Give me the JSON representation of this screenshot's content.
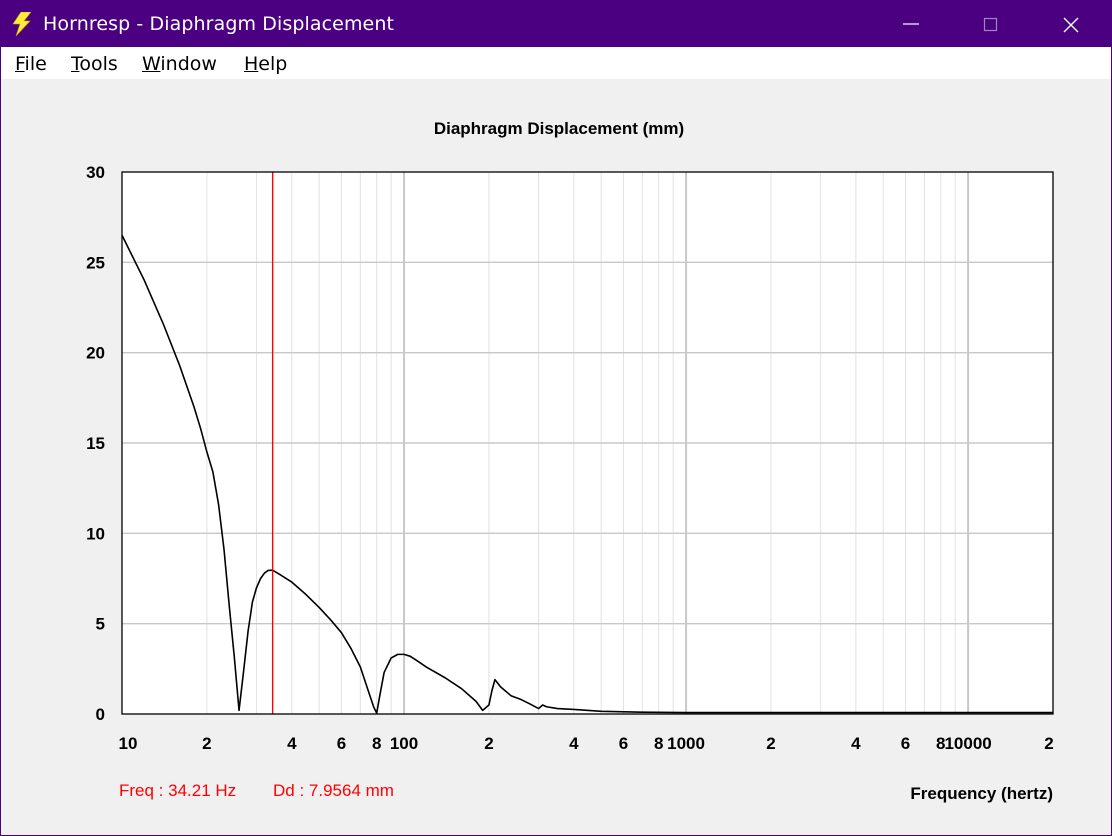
{
  "window": {
    "title": "Hornresp - Diaphragm Displacement",
    "title_color": "#4b0082",
    "icon": "lightning-bolt-icon",
    "controls": [
      "minimize-icon",
      "maximize-icon",
      "close-icon"
    ]
  },
  "menu": [
    {
      "label": "File",
      "mnemonic": "F",
      "rest": "ile"
    },
    {
      "label": "Tools",
      "mnemonic": "T",
      "rest": "ools"
    },
    {
      "label": "Window",
      "mnemonic": "W",
      "rest": "indow"
    },
    {
      "label": "Help",
      "mnemonic": "H",
      "rest": "elp"
    }
  ],
  "status": {
    "freq": "Freq : 34.21 Hz",
    "dd": "Dd : 7.9564 mm",
    "color": "#ff0000"
  },
  "chart_data": {
    "type": "line",
    "title": "Diaphragm Displacement (mm)",
    "xlabel": "Frequency (hertz)",
    "ylabel": "",
    "x_scale": "log",
    "xlim": [
      10,
      20000
    ],
    "ylim": [
      0,
      30
    ],
    "grid": true,
    "y_ticks": [
      0,
      5,
      10,
      15,
      20,
      25,
      30
    ],
    "x_tick_labels": [
      {
        "x": 10,
        "label": "10"
      },
      {
        "x": 20,
        "label": "2"
      },
      {
        "x": 40,
        "label": "4"
      },
      {
        "x": 60,
        "label": "6"
      },
      {
        "x": 80,
        "label": "8"
      },
      {
        "x": 100,
        "label": "100"
      },
      {
        "x": 200,
        "label": "2"
      },
      {
        "x": 400,
        "label": "4"
      },
      {
        "x": 600,
        "label": "6"
      },
      {
        "x": 800,
        "label": "8"
      },
      {
        "x": 1000,
        "label": "1000"
      },
      {
        "x": 2000,
        "label": "2"
      },
      {
        "x": 4000,
        "label": "4"
      },
      {
        "x": 6000,
        "label": "6"
      },
      {
        "x": 8000,
        "label": "8"
      },
      {
        "x": 10000,
        "label": "10000"
      },
      {
        "x": 20000,
        "label": "2"
      }
    ],
    "cursor": {
      "x": 34.21,
      "y": 7.9564,
      "color": "#ff0000"
    },
    "series": [
      {
        "color": "#000000",
        "x": [
          10,
          12,
          14,
          16,
          18,
          19,
          20,
          21,
          22,
          23,
          24,
          25,
          26,
          27,
          28,
          28.5,
          29,
          30,
          31,
          32,
          33,
          34.21,
          36,
          40,
          45,
          50,
          55,
          60,
          65,
          70,
          75,
          78,
          80,
          82,
          85,
          90,
          95,
          100,
          105,
          110,
          120,
          140,
          160,
          180,
          190,
          200,
          205,
          210,
          220,
          240,
          260,
          280,
          300,
          310,
          320,
          350,
          400,
          500,
          700,
          1000,
          2000,
          5000,
          10000,
          20000
        ],
        "y": [
          26.5,
          24.0,
          21.6,
          19.3,
          17.0,
          15.8,
          14.5,
          13.4,
          11.6,
          9.1,
          6.0,
          3.2,
          0.2,
          2.4,
          4.6,
          5.4,
          6.2,
          7.0,
          7.5,
          7.8,
          7.95,
          7.96,
          7.75,
          7.3,
          6.6,
          5.9,
          5.2,
          4.5,
          3.6,
          2.6,
          1.2,
          0.4,
          0.05,
          1.0,
          2.3,
          3.1,
          3.3,
          3.3,
          3.2,
          3.0,
          2.6,
          2.0,
          1.4,
          0.7,
          0.2,
          0.5,
          1.3,
          1.9,
          1.5,
          1.0,
          0.8,
          0.55,
          0.3,
          0.5,
          0.4,
          0.3,
          0.25,
          0.15,
          0.1,
          0.08,
          0.08,
          0.08,
          0.08,
          0.08
        ]
      }
    ]
  }
}
